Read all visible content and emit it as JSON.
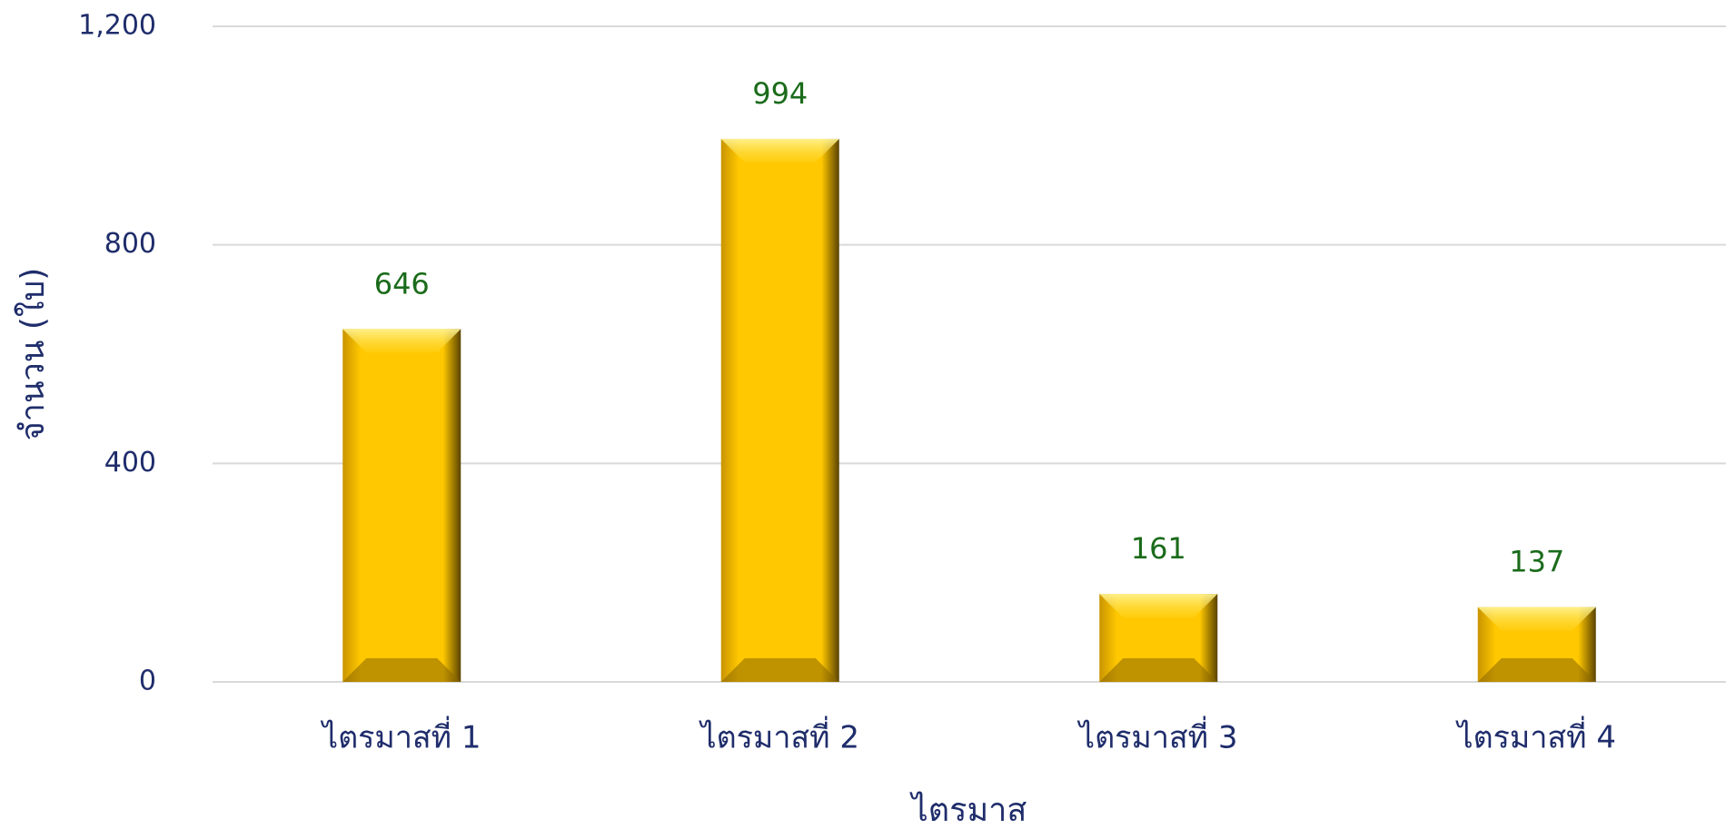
{
  "chart_data": {
    "type": "bar",
    "categories": [
      "ไตรมาสที่ 1",
      "ไตรมาสที่ 2",
      "ไตรมาสที่ 3",
      "ไตรมาสที่ 4"
    ],
    "values": [
      646,
      994,
      161,
      137
    ],
    "color": "#ffc800",
    "xlabel": "ไตรมาส",
    "ylabel": "จำนวน (ใบ)",
    "ylim": [
      0,
      1200
    ],
    "yticks": [
      0,
      400,
      800,
      {
        "value": 1200,
        "label": "1,200"
      }
    ],
    "grid": true
  }
}
